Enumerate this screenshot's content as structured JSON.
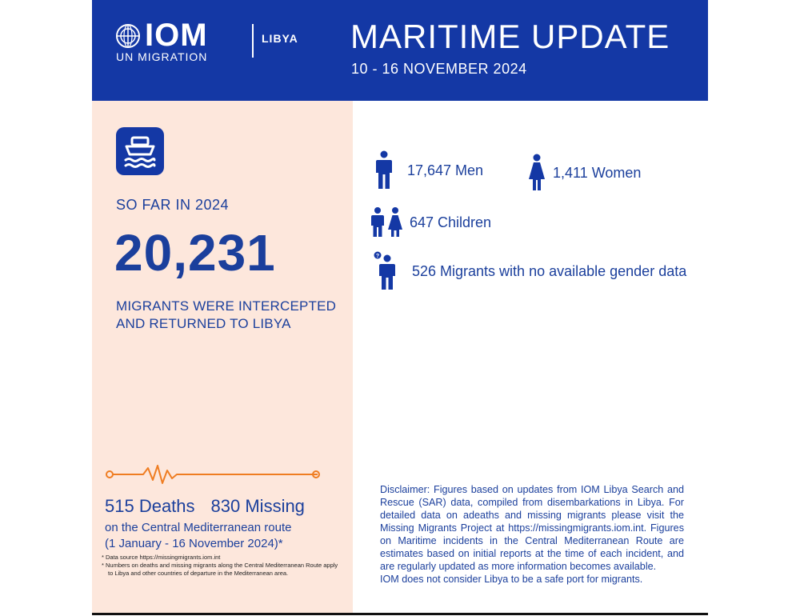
{
  "header": {
    "org_short": "IOM",
    "org_sub": "UN MIGRATION",
    "country": "LIBYA",
    "title": "MARITIME UPDATE",
    "date_range": "10 - 16 NOVEMBER 2024"
  },
  "summary": {
    "so_far_label": "SO FAR IN 2024",
    "total_intercepted": "20,231",
    "intercepted_text_line1": "MIGRANTS WERE INTERCEPTED",
    "intercepted_text_line2": "AND RETURNED TO LIBYA"
  },
  "demographics": {
    "men": "17,647 Men",
    "women": "1,411 Women",
    "children": "647 Children",
    "unknown": "526 Migrants with no available gender data"
  },
  "casualties": {
    "deaths": "515 Deaths",
    "missing": "830 Missing",
    "route_line1": "on the Central Mediterranean route",
    "route_line2": "(1 January - 16 November 2024)*",
    "footnote1": "*   Data source https://missingmigrants.iom.int",
    "footnote2": "*   Numbers on deaths and missing migrants along the Central Mediterranean Route apply to Libya and other countries of departure in the Mediterranean area."
  },
  "disclaimer": {
    "text": "Disclaimer: Figures based on updates from IOM Libya Search and Rescue (SAR) data, compiled from disembarkations in Libya. For detailed data on adeaths and missing migrants please visit the Missing Migrants Project at https://missingmigrants.iom.int. Figures on Maritime incidents in the Central Mediterranean Route are estimates based on initial reports at the time of each incident, and are regularly updated as more information becomes available.",
    "safe_port": "IOM does not consider Libya to be a safe port for migrants."
  },
  "icons": {
    "boat": "boat-icon",
    "man": "man-icon",
    "woman": "woman-icon",
    "children": "children-icon",
    "unknown": "unknown-person-icon",
    "heartbeat": "heartbeat-icon",
    "globe": "un-globe-icon"
  },
  "colors": {
    "primary_blue": "#1438a5",
    "panel_peach": "#fde7dc",
    "accent_orange": "#ef7d22"
  }
}
